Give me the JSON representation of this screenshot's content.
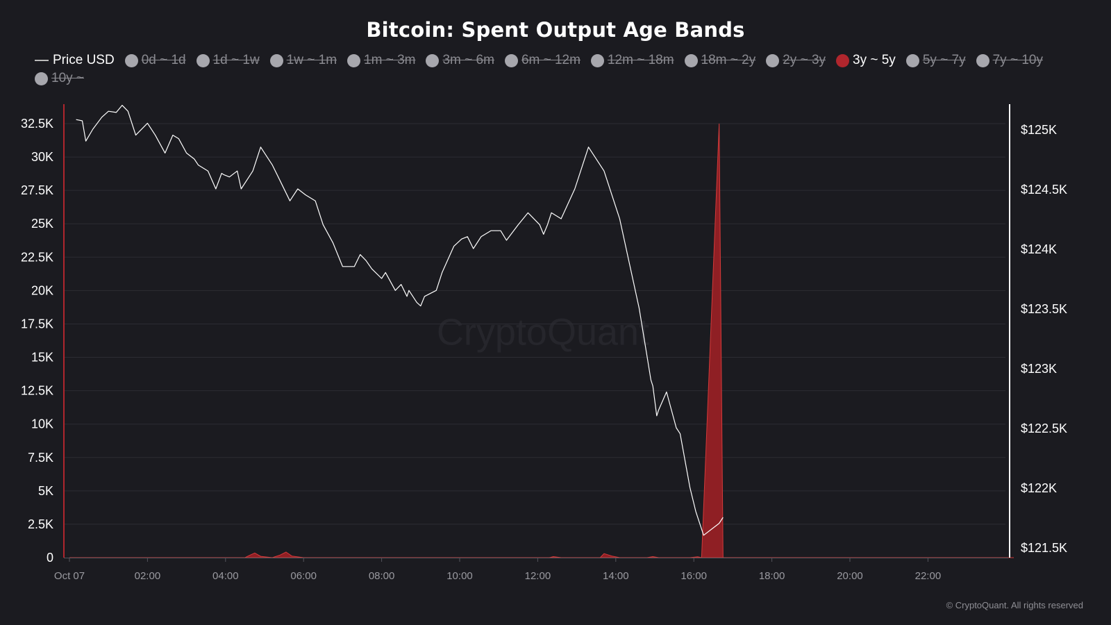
{
  "title": "Bitcoin: Spent Output Age Bands",
  "legend": [
    {
      "label": "Price USD",
      "kind": "line",
      "active": true
    },
    {
      "label": "0d ~ 1d",
      "kind": "dot",
      "active": false
    },
    {
      "label": "1d ~ 1w",
      "kind": "dot",
      "active": false
    },
    {
      "label": "1w ~ 1m",
      "kind": "dot",
      "active": false
    },
    {
      "label": "1m ~ 3m",
      "kind": "dot",
      "active": false
    },
    {
      "label": "3m ~ 6m",
      "kind": "dot",
      "active": false
    },
    {
      "label": "6m ~ 12m",
      "kind": "dot",
      "active": false
    },
    {
      "label": "12m ~ 18m",
      "kind": "dot",
      "active": false
    },
    {
      "label": "18m ~ 2y",
      "kind": "dot",
      "active": false
    },
    {
      "label": "2y ~ 3y",
      "kind": "dot",
      "active": false
    },
    {
      "label": "3y ~ 5y",
      "kind": "dot",
      "active": true,
      "color": "#b0262d"
    },
    {
      "label": "5y ~ 7y",
      "kind": "dot",
      "active": false
    },
    {
      "label": "7y ~ 10y",
      "kind": "dot",
      "active": false
    },
    {
      "label": "10y ~",
      "kind": "dot",
      "active": false
    }
  ],
  "watermark": "CryptoQuant",
  "copyright": "© CryptoQuant. All rights reserved",
  "colors": {
    "background": "#1b1b20",
    "price_line": "#ffffff",
    "band_fill": "#8f1f24",
    "band_stroke": "#d23a3a",
    "left_axis_line": "#b0262d",
    "right_axis_line": "#ffffff",
    "grid": "#2c2c33",
    "tick_text": "#ffffff",
    "x_tick_text": "#9a9aa0"
  },
  "chart_data": {
    "type": "line",
    "x_unit": "hours since Oct 07 00:00",
    "xlim": [
      0,
      24.2
    ],
    "x_ticks": [
      {
        "x": 0,
        "label": "Oct 07"
      },
      {
        "x": 2,
        "label": "02:00"
      },
      {
        "x": 4,
        "label": "04:00"
      },
      {
        "x": 6,
        "label": "06:00"
      },
      {
        "x": 8,
        "label": "08:00"
      },
      {
        "x": 10,
        "label": "10:00"
      },
      {
        "x": 12,
        "label": "12:00"
      },
      {
        "x": 14,
        "label": "14:00"
      },
      {
        "x": 16,
        "label": "16:00"
      },
      {
        "x": 18,
        "label": "18:00"
      },
      {
        "x": 20,
        "label": "20:00"
      },
      {
        "x": 22,
        "label": "22:00"
      }
    ],
    "left_axis": {
      "ylim": [
        0,
        32500
      ],
      "ticks": [
        {
          "v": 0,
          "label": "0"
        },
        {
          "v": 2500,
          "label": "2.5K"
        },
        {
          "v": 5000,
          "label": "5K"
        },
        {
          "v": 7500,
          "label": "7.5K"
        },
        {
          "v": 10000,
          "label": "10K"
        },
        {
          "v": 12500,
          "label": "12.5K"
        },
        {
          "v": 15000,
          "label": "15K"
        },
        {
          "v": 17500,
          "label": "17.5K"
        },
        {
          "v": 20000,
          "label": "20K"
        },
        {
          "v": 22500,
          "label": "22.5K"
        },
        {
          "v": 25000,
          "label": "25K"
        },
        {
          "v": 27500,
          "label": "27.5K"
        },
        {
          "v": 30000,
          "label": "30K"
        },
        {
          "v": 32500,
          "label": "32.5K"
        }
      ]
    },
    "right_axis": {
      "ylim": [
        121500,
        125100
      ],
      "ticks": [
        {
          "v": 121500,
          "label": "$121.5K"
        },
        {
          "v": 122000,
          "label": "$122K"
        },
        {
          "v": 122500,
          "label": "$122.5K"
        },
        {
          "v": 123000,
          "label": "$123K"
        },
        {
          "v": 123500,
          "label": "$123.5K"
        },
        {
          "v": 124000,
          "label": "$124K"
        },
        {
          "v": 124500,
          "label": "$124.5K"
        },
        {
          "v": 125000,
          "label": "$125K"
        }
      ]
    },
    "series": [
      {
        "name": "Price USD",
        "axis": "right",
        "type": "line",
        "x": [
          0.17,
          0.33,
          0.42,
          0.6,
          0.83,
          1.0,
          1.2,
          1.35,
          1.5,
          1.7,
          2.0,
          2.2,
          2.45,
          2.65,
          2.8,
          3.0,
          3.2,
          3.3,
          3.55,
          3.75,
          3.9,
          3.95,
          4.1,
          4.3,
          4.4,
          4.6,
          4.7,
          4.9,
          5.0,
          5.2,
          5.35,
          5.65,
          5.85,
          6.05,
          6.3,
          6.5,
          6.75,
          7.0,
          7.05,
          7.3,
          7.45,
          7.6,
          7.75,
          8.0,
          8.1,
          8.35,
          8.5,
          8.65,
          8.7,
          8.9,
          9.0,
          9.1,
          9.4,
          9.55,
          9.85,
          10.05,
          10.2,
          10.35,
          10.55,
          10.8,
          11.05,
          11.2,
          11.5,
          11.75,
          12.05,
          12.15,
          12.25,
          12.35,
          12.6,
          12.95,
          13.3,
          13.7,
          14.1,
          14.6,
          14.8,
          14.9,
          14.95,
          15.05,
          15.1,
          15.3,
          15.55,
          15.65,
          15.9,
          16.05,
          16.25,
          16.65,
          16.75
        ],
        "y": [
          125080,
          125070,
          124900,
          125000,
          125100,
          125150,
          125140,
          125200,
          125150,
          124950,
          125050,
          124950,
          124800,
          124950,
          124920,
          124800,
          124750,
          124700,
          124650,
          124500,
          124630,
          124620,
          124600,
          124650,
          124500,
          124600,
          124650,
          124850,
          124800,
          124700,
          124600,
          124400,
          124500,
          124450,
          124400,
          124200,
          124050,
          123850,
          123850,
          123850,
          123950,
          123900,
          123830,
          123750,
          123800,
          123650,
          123700,
          123600,
          123650,
          123550,
          123520,
          123600,
          123650,
          123800,
          124020,
          124080,
          124100,
          124000,
          124100,
          124150,
          124150,
          124070,
          124200,
          124300,
          124200,
          124120,
          124200,
          124300,
          124250,
          124500,
          124850,
          124650,
          124250,
          123500,
          123100,
          122900,
          122850,
          122600,
          122650,
          122800,
          122500,
          122450,
          122000,
          121800,
          121600,
          121700,
          121750
        ]
      },
      {
        "name": "3y ~ 5y",
        "axis": "left",
        "type": "area",
        "x": [
          0,
          4.5,
          4.6,
          4.75,
          4.9,
          5.2,
          5.4,
          5.55,
          5.7,
          6.0,
          12.3,
          12.4,
          12.6,
          13.6,
          13.7,
          13.9,
          14.1,
          14.8,
          14.95,
          15.1,
          15.9,
          16.1,
          16.2,
          16.65,
          16.75,
          16.85,
          24.2
        ],
        "y": [
          0,
          0,
          150,
          350,
          100,
          0,
          200,
          420,
          120,
          0,
          0,
          80,
          0,
          0,
          300,
          120,
          0,
          0,
          80,
          0,
          0,
          60,
          0,
          32500,
          0,
          0,
          0
        ]
      }
    ]
  }
}
